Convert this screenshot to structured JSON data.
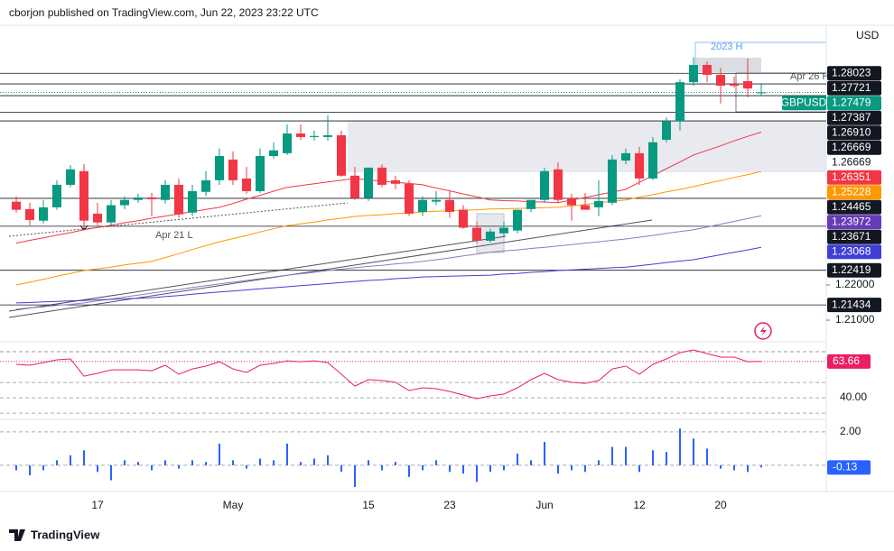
{
  "header": "cborjon published on TradingView.com, Jun 22, 2023 23:22 UTC",
  "footer": "TradingView",
  "chart_data": [
    {
      "type": "candlestick",
      "symbol": "GBPUSD",
      "currency": "USD",
      "up_color": "#089981",
      "down_color": "#f23645",
      "annotations": [
        "2023 H",
        "Apr 26 H",
        "Apr 21 L"
      ],
      "categories": [
        null,
        null,
        null,
        null,
        null,
        null,
        "17",
        null,
        null,
        null,
        null,
        null,
        null,
        null,
        null,
        null,
        "May",
        null,
        null,
        null,
        null,
        null,
        null,
        null,
        null,
        null,
        "15",
        null,
        null,
        null,
        null,
        null,
        "23",
        null,
        null,
        null,
        null,
        null,
        null,
        "Jun",
        null,
        null,
        null,
        null,
        null,
        null,
        "12",
        null,
        null,
        null,
        null,
        null,
        "20",
        null,
        null,
        null
      ],
      "open": [
        1.2437,
        1.2416,
        1.2383,
        1.2421,
        1.2485,
        1.2524,
        1.2403,
        1.2378,
        1.2427,
        1.2442,
        1.2449,
        1.2442,
        1.2485,
        1.2406,
        1.2465,
        1.2498,
        1.2557,
        1.2503,
        1.2467,
        1.2567,
        1.2575,
        1.2631,
        1.2621,
        1.2621,
        1.2626,
        1.2511,
        1.2447,
        1.2534,
        1.2498,
        1.2488,
        1.2408,
        1.2437,
        1.2442,
        1.2414,
        1.2363,
        1.2326,
        1.2347,
        1.2355,
        1.2416,
        1.2442,
        1.2529,
        1.2447,
        1.2427,
        1.2421,
        1.2434,
        1.2554,
        1.2575,
        1.2503,
        1.2613,
        1.2665,
        1.2777,
        1.2826,
        1.2798,
        1.2772,
        1.278,
        1.2746
      ],
      "high": [
        1.2452,
        1.2434,
        1.2442,
        1.2498,
        1.2541,
        1.2544,
        1.2434,
        1.2442,
        1.2452,
        1.246,
        1.2462,
        1.2498,
        1.2503,
        1.2485,
        1.2524,
        1.2588,
        1.258,
        1.2536,
        1.2588,
        1.2606,
        1.2657,
        1.2657,
        1.2639,
        1.2683,
        1.2639,
        1.2536,
        1.2534,
        1.2544,
        1.2511,
        1.2498,
        1.2452,
        1.2467,
        1.2467,
        1.2427,
        1.238,
        1.236,
        1.238,
        1.2414,
        1.2442,
        1.2534,
        1.2549,
        1.246,
        1.2462,
        1.2498,
        1.257,
        1.2588,
        1.2593,
        1.2621,
        1.2677,
        1.2785,
        1.2848,
        1.2836,
        1.2818,
        1.2793,
        1.2844,
        1.2772
      ],
      "low": [
        1.2406,
        1.237,
        1.2375,
        1.2414,
        1.2478,
        1.2362,
        1.237,
        1.237,
        1.2416,
        1.2434,
        1.2396,
        1.2432,
        1.2391,
        1.2396,
        1.2454,
        1.2485,
        1.2485,
        1.246,
        1.2462,
        1.256,
        1.257,
        1.2613,
        1.2611,
        1.2611,
        1.2508,
        1.2442,
        1.2439,
        1.2478,
        1.2473,
        1.2396,
        1.2396,
        1.2427,
        1.2391,
        1.236,
        1.2319,
        1.2321,
        1.2339,
        1.2347,
        1.2408,
        1.2434,
        1.2434,
        1.2383,
        1.2416,
        1.2396,
        1.2427,
        1.2544,
        1.2485,
        1.2498,
        1.2606,
        1.2639,
        1.2767,
        1.2777,
        1.2716,
        1.2762,
        1.2734,
        1.274
      ],
      "close": [
        1.2414,
        1.2385,
        1.2421,
        1.2485,
        1.2529,
        1.2383,
        1.2378,
        1.2427,
        1.2442,
        1.2449,
        1.2444,
        1.2485,
        1.2401,
        1.2467,
        1.2498,
        1.2567,
        1.2498,
        1.2467,
        1.2567,
        1.2583,
        1.2631,
        1.2621,
        1.2624,
        1.2626,
        1.2511,
        1.2447,
        1.2534,
        1.2485,
        1.2488,
        1.2403,
        1.2442,
        1.2442,
        1.2408,
        1.2363,
        1.2326,
        1.2352,
        1.2363,
        1.2414,
        1.2442,
        1.2524,
        1.2442,
        1.2427,
        1.2414,
        1.2439,
        1.2557,
        1.2575,
        1.2503,
        1.2606,
        1.2665,
        1.2777,
        1.2826,
        1.2798,
        1.2767,
        1.2767,
        1.2759,
        1.2748
      ],
      "lines": [
        {
          "color": "#f23645",
          "values": [
            1.2319,
            1.2327,
            1.2334,
            1.2342,
            1.2349,
            1.2357,
            1.2364,
            1.237,
            1.2377,
            1.2383,
            1.239,
            1.2396,
            1.2402,
            1.2409,
            1.2415,
            1.2421,
            1.2432,
            1.2444,
            1.2455,
            1.2467,
            1.2478,
            1.2483,
            1.2488,
            1.2493,
            1.2498,
            1.2503,
            1.2499,
            1.2496,
            1.2492,
            1.2489,
            1.2485,
            1.2476,
            1.2468,
            1.2459,
            1.2451,
            1.2442,
            1.244,
            1.2439,
            1.2437,
            1.2436,
            1.2434,
            1.2442,
            1.2449,
            1.2457,
            1.2464,
            1.2472,
            1.2492,
            1.2511,
            1.2531,
            1.255,
            1.257,
            1.2583,
            1.2596,
            1.261,
            1.2623,
            1.2635
          ]
        },
        {
          "color": "#ff9800",
          "values": [
            1.22,
            1.2208,
            1.2216,
            1.2225,
            1.2233,
            1.2241,
            1.2246,
            1.2251,
            1.2257,
            1.2262,
            1.2267,
            1.2278,
            1.2289,
            1.2301,
            1.2312,
            1.2323,
            1.2332,
            1.2341,
            1.2351,
            1.236,
            1.2369,
            1.2374,
            1.2379,
            1.2385,
            1.239,
            1.2395,
            1.2398,
            1.24,
            1.2403,
            1.2405,
            1.2408,
            1.241,
            1.2411,
            1.2413,
            1.2414,
            1.2416,
            1.2417,
            1.2418,
            1.2419,
            1.242,
            1.2421,
            1.2425,
            1.2429,
            1.2434,
            1.2438,
            1.2442,
            1.245,
            1.2457,
            1.2465,
            1.2472,
            1.248,
            1.2489,
            1.2497,
            1.2506,
            1.2514,
            1.2523
          ]
        },
        {
          "color": "#8e7cc3",
          "values": [
            1.2131,
            1.2135,
            1.2138,
            1.2142,
            1.2145,
            1.2149,
            1.2155,
            1.216,
            1.2166,
            1.2171,
            1.2177,
            1.2182,
            1.2187,
            1.2193,
            1.2198,
            1.2203,
            1.2208,
            1.2213,
            1.2218,
            1.2223,
            1.2228,
            1.2232,
            1.2236,
            1.2241,
            1.2245,
            1.2249,
            1.2253,
            1.2256,
            1.226,
            1.2263,
            1.2267,
            1.2272,
            1.2277,
            1.2283,
            1.2288,
            1.2293,
            1.2297,
            1.23,
            1.2304,
            1.2307,
            1.2311,
            1.2315,
            1.2319,
            1.2323,
            1.2327,
            1.2331,
            1.2336,
            1.2341,
            1.2347,
            1.2352,
            1.2357,
            1.2365,
            1.2373,
            1.2381,
            1.2389,
            1.2397
          ]
        },
        {
          "color": "#3f3fd8",
          "values": [
            1.2149,
            1.215,
            1.2152,
            1.2153,
            1.2155,
            1.2156,
            1.2158,
            1.2159,
            1.2161,
            1.2162,
            1.2164,
            1.2167,
            1.217,
            1.2174,
            1.2177,
            1.218,
            1.2183,
            1.2186,
            1.2189,
            1.2192,
            1.2195,
            1.2198,
            1.2201,
            1.2204,
            1.2207,
            1.221,
            1.2213,
            1.2215,
            1.2218,
            1.222,
            1.2223,
            1.2224,
            1.2225,
            1.2226,
            1.2227,
            1.2228,
            1.2231,
            1.2233,
            1.2236,
            1.2238,
            1.2241,
            1.2243,
            1.2245,
            1.2247,
            1.2249,
            1.2251,
            1.2255,
            1.2259,
            1.2264,
            1.2268,
            1.2272,
            1.2279,
            1.2286,
            1.2293,
            1.23,
            1.2307
          ]
        }
      ],
      "levels": [
        {
          "value": 1.28023,
          "color": "#131722"
        },
        {
          "value": 1.27721,
          "color": "#131722"
        },
        {
          "value": 1.27479,
          "color": "#089981"
        },
        {
          "value": 1.27387,
          "color": "#131722"
        },
        {
          "value": 1.2691,
          "label": "1.26910",
          "color": "#131722"
        },
        {
          "value": 1.26669,
          "color": "#131722"
        },
        {
          "value": 1.26669,
          "color": "#ffffff"
        },
        {
          "value": 1.26351,
          "color": "#f23645"
        },
        {
          "value": 1.25228,
          "color": "#ff9800"
        },
        {
          "value": 1.24465,
          "color": "#131722"
        },
        {
          "value": 1.23972,
          "color": "#673ab7"
        },
        {
          "value": 1.23671,
          "color": "#131722"
        },
        {
          "value": 1.23068,
          "color": "#3f3fd8"
        },
        {
          "value": 1.22419,
          "color": "#131722"
        },
        {
          "value": 1.21434,
          "color": "#131722"
        }
      ],
      "ylim": [
        1.2041,
        1.2939
      ],
      "yticks": [
        {
          "value": 1.22,
          "label": "1.22000"
        },
        {
          "value": 1.21,
          "label": "1.21000"
        }
      ]
    },
    {
      "type": "line",
      "color": "#e91e63",
      "ylim": [
        26.5,
        75.9
      ],
      "yticks": [
        {
          "value": 40,
          "label": "40.00"
        }
      ],
      "levels": [
        70,
        50,
        30
      ],
      "values": [
        61.8,
        61.2,
        62.9,
        64.7,
        65.3,
        54.1,
        55.9,
        58.2,
        58.2,
        58.2,
        57.6,
        61.2,
        55.3,
        58.8,
        60.6,
        63.5,
        58.8,
        56.5,
        61.2,
        62.4,
        64.1,
        63.5,
        64.1,
        62.9,
        55.3,
        47.6,
        51.8,
        51.2,
        50.0,
        44.7,
        46.5,
        45.9,
        44.1,
        41.8,
        39.4,
        41.2,
        42.4,
        46.5,
        51.8,
        55.9,
        51.8,
        50.0,
        49.4,
        51.2,
        58.8,
        60.6,
        55.3,
        61.8,
        65.3,
        69.4,
        71.2,
        68.8,
        66.5,
        66.5,
        63.5,
        63.66
      ]
    },
    {
      "type": "bar",
      "color": "#2962ff",
      "ylim": [
        -1.41,
        2.7
      ],
      "yticks": [
        {
          "value": 2,
          "label": "2.00"
        }
      ],
      "levels": [
        0
      ],
      "values": [
        -0.3,
        -0.6,
        -0.3,
        0.3,
        0.6,
        0.9,
        -0.4,
        -0.9,
        0.3,
        0.2,
        -0.3,
        0.3,
        -0.2,
        0.3,
        0.2,
        1.3,
        0.3,
        -0.2,
        0.4,
        0.3,
        1.3,
        0.2,
        0.4,
        0.6,
        -0.4,
        -1.3,
        0.3,
        -0.3,
        0.2,
        -0.7,
        -0.3,
        0.3,
        -0.4,
        -0.5,
        -1.0,
        -0.4,
        -0.3,
        0.7,
        0.3,
        1.4,
        -0.5,
        -0.3,
        -0.4,
        0.3,
        1.1,
        1.1,
        -0.4,
        0.9,
        0.8,
        2.2,
        1.6,
        1.0,
        -0.2,
        -0.3,
        -0.4,
        -0.13
      ]
    }
  ]
}
